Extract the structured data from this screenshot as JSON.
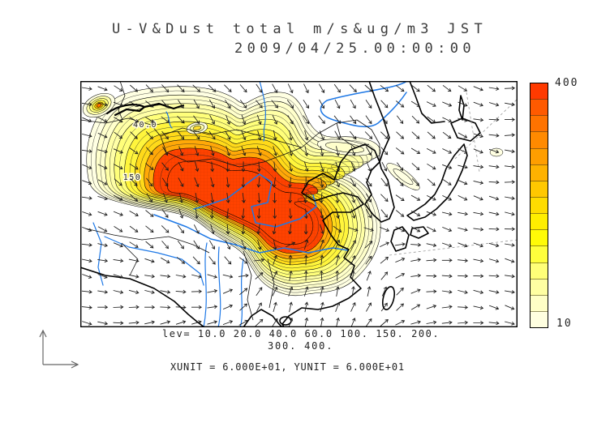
{
  "title": {
    "line1": "U-V&Dust total m/s&ug/m3 JST",
    "line2": "2009/04/25.00:00:00"
  },
  "footer": {
    "lev_line1": "lev= 10.0 20.0 40.0 60.0 100. 150. 200.",
    "lev_line2": "300. 400.",
    "units_line": "XUNIT = 6.000E+01, YUNIT = 6.000E+01"
  },
  "colorbar": {
    "max_label": "400",
    "min_label": "10",
    "colors_top_to_bottom": [
      "#FF3A00",
      "#FF5A00",
      "#FF7300",
      "#FF8A00",
      "#FF9E00",
      "#FFB200",
      "#FFC800",
      "#FFDC00",
      "#FFEE00",
      "#FFFB07",
      "#FFFF3C",
      "#FFFF78",
      "#FFFFA2",
      "#FFFFC6",
      "#FFFFE0"
    ]
  },
  "map": {
    "contour_labels": [
      "40.0",
      "150"
    ],
    "contour_levels": [
      10,
      20,
      40,
      60,
      100,
      150,
      200,
      300,
      400
    ],
    "fill_palette_low_to_high": [
      "#FFFFE2",
      "#FFFFCB",
      "#FFFFA6",
      "#FFFF7A",
      "#FFF53C",
      "#FFDA1A",
      "#FFA808"
    ],
    "dust_core_color": "#FF4200",
    "dust_core_hatch_color": "#C83200",
    "river_color": "#1E78E6",
    "coast_color": "#000000",
    "border_color": "#111111",
    "graticule_color": "#999999",
    "vector_color": "#1C1C1C",
    "background": "#FFFFFF"
  },
  "chart_data": {
    "type": "heatmap",
    "title": "U-V&Dust total m/s&ug/m3 JST",
    "subtitle": "2009/04/25.00:00:00",
    "variable": "Dust total concentration (ug/m3, shaded contours) with U-V wind vectors (m/s)",
    "region": "East Asia (China, Mongolia, Korea, Japan)",
    "contour_levels": [
      10,
      20,
      40,
      60,
      100,
      150,
      200,
      300,
      400
    ],
    "colorbar": {
      "min": 10,
      "max": 400,
      "orientation": "vertical",
      "position": "right"
    },
    "annotations": [
      "40.0",
      "150"
    ],
    "xunit": "6.000E+01",
    "yunit": "6.000E+01",
    "timestamp_jst": "2009/04/25 00:00:00",
    "legend_position": "right",
    "grid": false
  }
}
